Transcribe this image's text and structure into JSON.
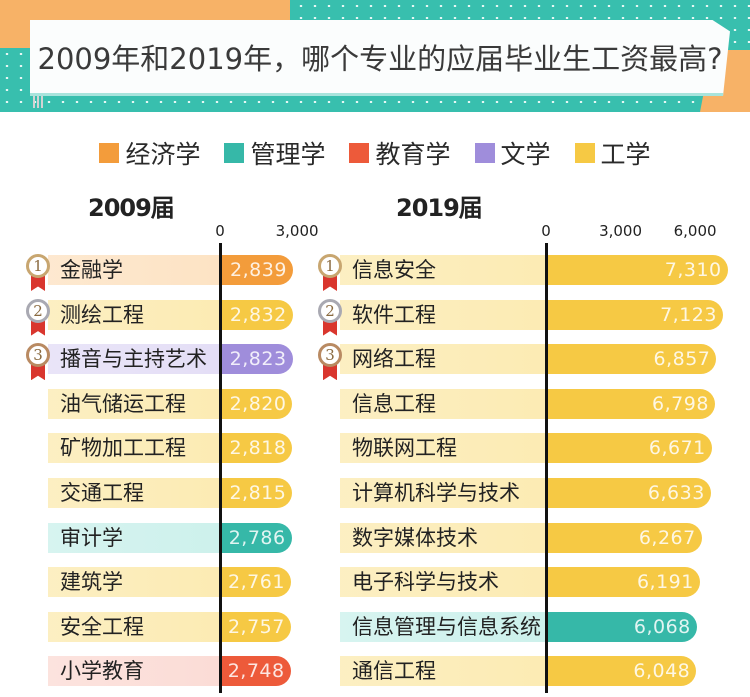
{
  "header": {
    "title": "2009年和2019年，哪个专业的应届毕业生工资最高?"
  },
  "legend": [
    {
      "label": "经济学",
      "color": "#f39c3b"
    },
    {
      "label": "管理学",
      "color": "#36b8a8"
    },
    {
      "label": "教育学",
      "color": "#ed5a3a"
    },
    {
      "label": "文学",
      "color": "#9f8ddb"
    },
    {
      "label": "工学",
      "color": "#f6c944"
    }
  ],
  "chart_data": [
    {
      "type": "bar",
      "orientation": "horizontal",
      "title": "2009届",
      "xlabel": "",
      "ylabel": "",
      "ticks": [
        "0",
        "3,000"
      ],
      "xlim": [
        0,
        3000
      ],
      "categories": [
        "金融学",
        "测绘工程",
        "播音与主持艺术",
        "油气储运工程",
        "矿物加工工程",
        "交通工程",
        "审计学",
        "建筑学",
        "安全工程",
        "小学教育"
      ],
      "values": [
        2839,
        2832,
        2823,
        2820,
        2818,
        2815,
        2786,
        2761,
        2757,
        2748
      ],
      "value_labels": [
        "2,839",
        "2,832",
        "2,823",
        "2,820",
        "2,818",
        "2,815",
        "2,786",
        "2,761",
        "2,757",
        "2,748"
      ],
      "disciplines": [
        "经济学",
        "工学",
        "文学",
        "工学",
        "工学",
        "工学",
        "管理学",
        "工学",
        "工学",
        "教育学"
      ],
      "ranks": [
        "1",
        "2",
        "3"
      ]
    },
    {
      "type": "bar",
      "orientation": "horizontal",
      "title": "2019届",
      "xlabel": "",
      "ylabel": "",
      "ticks": [
        "0",
        "3,000",
        "6,000"
      ],
      "xlim": [
        0,
        7500
      ],
      "categories": [
        "信息安全",
        "软件工程",
        "网络工程",
        "信息工程",
        "物联网工程",
        "计算机科学与技术",
        "数字媒体技术",
        "电子科学与技术",
        "信息管理与信息系统",
        "通信工程"
      ],
      "values": [
        7310,
        7123,
        6857,
        6798,
        6671,
        6633,
        6267,
        6191,
        6068,
        6048
      ],
      "value_labels": [
        "7,310",
        "7,123",
        "6,857",
        "6,798",
        "6,671",
        "6,633",
        "6,267",
        "6,191",
        "6,068",
        "6,048"
      ],
      "disciplines": [
        "工学",
        "工学",
        "工学",
        "工学",
        "工学",
        "工学",
        "工学",
        "工学",
        "管理学",
        "工学"
      ],
      "ranks": [
        "1",
        "2",
        "3"
      ]
    }
  ],
  "colors": {
    "经济学": {
      "bar": "#f39c3b",
      "bg": "#fde3c4"
    },
    "管理学": {
      "bar": "#36b8a8",
      "bg": "#cdf1ec"
    },
    "教育学": {
      "bar": "#ed5a3a",
      "bg": "#fbdcd6"
    },
    "文学": {
      "bar": "#9f8ddb",
      "bg": "#e4def6"
    },
    "工学": {
      "bar": "#f6c944",
      "bg": "#fcebb3"
    },
    "medal_gold": "#c8a670",
    "medal_silver": "#a9a9b2",
    "medal_bronze": "#b98a62"
  }
}
